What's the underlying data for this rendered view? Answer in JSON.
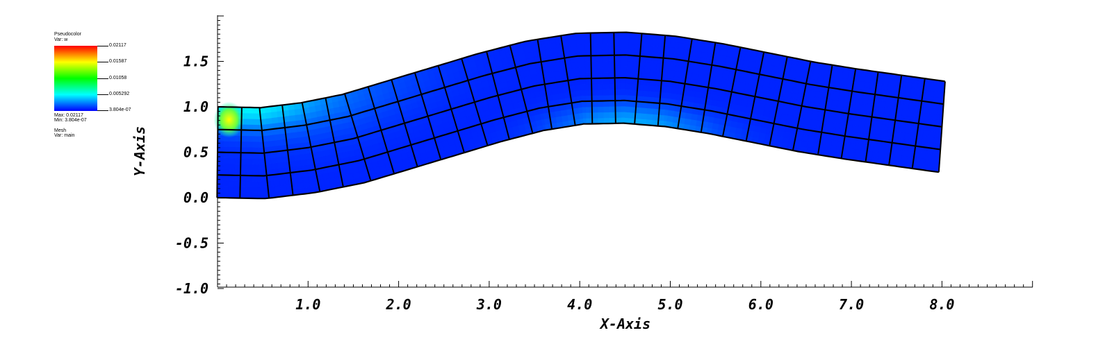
{
  "legend": {
    "plot_name": "Pseudocolor",
    "var_line": "Var: w",
    "ticks": [
      "0.02117",
      "0.01587",
      "0.01058",
      "0.005292",
      "3.804e-07"
    ],
    "max_line": "Max: 0.02117",
    "min_line": "Min: 3.804e-07",
    "mesh_name": "Mesh",
    "mesh_var": "Var: main"
  },
  "chart_data": {
    "type": "heatmap",
    "title": "",
    "xlabel": "X-Axis",
    "ylabel": "Y-Axis",
    "xlim": [
      0.0,
      9.0
    ],
    "ylim": [
      -1.0,
      2.0
    ],
    "x_ticks": [
      "1.0",
      "2.0",
      "3.0",
      "4.0",
      "5.0",
      "6.0",
      "7.0",
      "8.0"
    ],
    "y_ticks": [
      "-1.0",
      "-0.5",
      "0.0",
      "0.5",
      "1.0",
      "1.5"
    ],
    "variable": "w",
    "value_range": [
      3.804e-07,
      0.02117
    ],
    "colormap": [
      "#0000ff",
      "#00ffff",
      "#00ff00",
      "#ffff00",
      "#ff0000"
    ],
    "mesh": {
      "columns": 31,
      "rows": 4,
      "beam_length": 8.0,
      "beam_height": 1.0,
      "centerline": [
        [
          0.0,
          0.5
        ],
        [
          0.5,
          0.49
        ],
        [
          1.0,
          0.55
        ],
        [
          1.5,
          0.65
        ],
        [
          2.0,
          0.8
        ],
        [
          2.5,
          0.95
        ],
        [
          3.0,
          1.1
        ],
        [
          3.5,
          1.23
        ],
        [
          4.0,
          1.31
        ],
        [
          4.5,
          1.32
        ],
        [
          5.0,
          1.28
        ],
        [
          5.5,
          1.2
        ],
        [
          6.0,
          1.1
        ],
        [
          6.5,
          1.0
        ],
        [
          7.0,
          0.92
        ],
        [
          7.5,
          0.85
        ],
        [
          8.0,
          0.78
        ]
      ]
    },
    "grid": false,
    "legend_position": "top-left"
  }
}
